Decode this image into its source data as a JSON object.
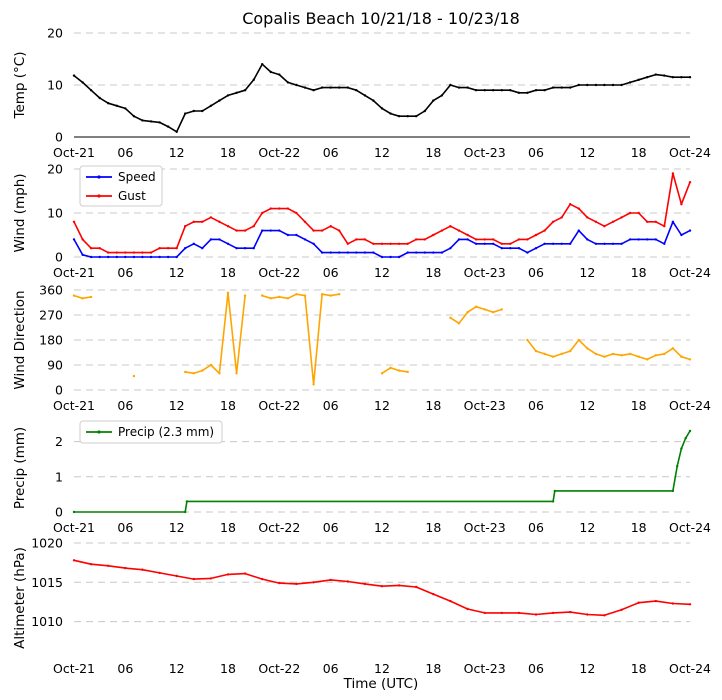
{
  "title": "Copalis Beach 10/21/18 - 10/23/18",
  "xlabel": "Time (UTC)",
  "x_ticks": [
    "Oct-21",
    "06",
    "12",
    "18",
    "Oct-22",
    "06",
    "12",
    "18",
    "Oct-23",
    "06",
    "12",
    "18",
    "Oct-24"
  ],
  "colors": {
    "temp": "#000000",
    "speed": "#0000ff",
    "gust": "#ff0000",
    "direction": "#ffa500",
    "precip": "#008000",
    "altimeter": "#ff0000"
  },
  "chart_data": [
    {
      "type": "line",
      "id": "temp",
      "ylabel": "Temp ($^\\circ$C)",
      "ylabel_display": "Temp (°C)",
      "ylim": [
        0,
        20
      ],
      "yticks": [
        "0",
        "10",
        "20"
      ],
      "xlim_hours": [
        0,
        72
      ],
      "series": [
        {
          "name": "Temp",
          "x": [
            0,
            1,
            2,
            3,
            4,
            5,
            6,
            7,
            8,
            9,
            10,
            11,
            12,
            13,
            14,
            15,
            16,
            17,
            18,
            19,
            20,
            21,
            22,
            23,
            24,
            25,
            26,
            27,
            28,
            29,
            30,
            31,
            32,
            33,
            34,
            35,
            36,
            37,
            38,
            39,
            40,
            41,
            42,
            43,
            44,
            45,
            46,
            47,
            48,
            49,
            50,
            51,
            52,
            53,
            54,
            55,
            56,
            57,
            58,
            59,
            60,
            61,
            62,
            63,
            64,
            65,
            66,
            67,
            68,
            69,
            70,
            71,
            72
          ],
          "y": [
            11.8,
            10.5,
            9,
            7.5,
            6.5,
            6,
            5.5,
            4,
            3.2,
            3,
            2.8,
            2,
            1,
            4.5,
            5,
            5,
            6,
            7,
            8,
            8.5,
            9,
            11,
            14,
            12.5,
            12,
            10.5,
            10,
            9.5,
            9,
            9.5,
            9.5,
            9.5,
            9.5,
            9,
            8,
            7,
            5.5,
            4.5,
            4,
            4,
            4,
            5,
            7,
            8,
            10,
            9.5,
            9.5,
            9,
            9,
            9,
            9,
            9,
            8.5,
            8.5,
            9,
            9,
            9.5,
            9.5,
            9.5,
            10,
            10,
            10,
            10,
            10,
            10,
            10.5,
            11,
            11.5,
            12,
            11.8,
            11.5,
            11.5,
            11.5
          ]
        }
      ]
    },
    {
      "type": "line",
      "id": "wind",
      "ylabel": "Wind (mph)",
      "ylim": [
        0,
        20
      ],
      "yticks": [
        "0",
        "10",
        "20"
      ],
      "legend": [
        "Speed",
        "Gust"
      ],
      "series": [
        {
          "name": "Speed",
          "x": [
            0,
            1,
            2,
            3,
            4,
            5,
            6,
            7,
            8,
            9,
            10,
            11,
            12,
            13,
            14,
            15,
            16,
            17,
            18,
            19,
            20,
            21,
            22,
            23,
            24,
            25,
            26,
            27,
            28,
            29,
            30,
            31,
            32,
            33,
            34,
            35,
            36,
            37,
            38,
            39,
            40,
            41,
            42,
            43,
            44,
            45,
            46,
            47,
            48,
            49,
            50,
            51,
            52,
            53,
            54,
            55,
            56,
            57,
            58,
            59,
            60,
            61,
            62,
            63,
            64,
            65,
            66,
            67,
            68,
            69,
            70,
            71,
            72
          ],
          "y": [
            4,
            0.5,
            0,
            0,
            0,
            0,
            0,
            0,
            0,
            0,
            0,
            0,
            0,
            2,
            3,
            2,
            4,
            4,
            3,
            2,
            2,
            2,
            6,
            6,
            6,
            5,
            5,
            4,
            3,
            1,
            1,
            1,
            1,
            1,
            1,
            1,
            0,
            0,
            0,
            1,
            1,
            1,
            1,
            1,
            2,
            4,
            4,
            3,
            3,
            3,
            2,
            2,
            2,
            1,
            2,
            3,
            3,
            3,
            3,
            6,
            4,
            3,
            3,
            3,
            3,
            4,
            4,
            4,
            4,
            3,
            8,
            5,
            6
          ]
        },
        {
          "name": "Gust",
          "x": [
            0,
            1,
            2,
            3,
            4,
            5,
            6,
            7,
            8,
            9,
            10,
            11,
            12,
            13,
            14,
            15,
            16,
            17,
            18,
            19,
            20,
            21,
            22,
            23,
            24,
            25,
            26,
            27,
            28,
            29,
            30,
            31,
            32,
            33,
            34,
            35,
            36,
            37,
            38,
            39,
            40,
            41,
            42,
            43,
            44,
            45,
            46,
            47,
            48,
            49,
            50,
            51,
            52,
            53,
            54,
            55,
            56,
            57,
            58,
            59,
            60,
            61,
            62,
            63,
            64,
            65,
            66,
            67,
            68,
            69,
            70,
            71,
            72
          ],
          "y": [
            8,
            4,
            2,
            2,
            1,
            1,
            1,
            1,
            1,
            1,
            2,
            2,
            2,
            7,
            8,
            8,
            9,
            8,
            7,
            6,
            6,
            7,
            10,
            11,
            11,
            11,
            10,
            8,
            6,
            6,
            7,
            6,
            3,
            4,
            4,
            3,
            3,
            3,
            3,
            3,
            4,
            4,
            5,
            6,
            7,
            6,
            5,
            4,
            4,
            4,
            3,
            3,
            4,
            4,
            5,
            6,
            8,
            9,
            12,
            11,
            9,
            8,
            7,
            8,
            9,
            10,
            10,
            8,
            8,
            7,
            19,
            12,
            17
          ]
        }
      ]
    },
    {
      "type": "line",
      "id": "direction",
      "ylabel": "Wind Direction",
      "ylim": [
        0,
        360
      ],
      "yticks": [
        "0",
        "90",
        "180",
        "270",
        "360"
      ],
      "series": [
        {
          "name": "Direction",
          "x": [
            0,
            1,
            2,
            3,
            4,
            5,
            6,
            7,
            8,
            9,
            10,
            11,
            12,
            13,
            14,
            15,
            16,
            17,
            18,
            19,
            20,
            21,
            22,
            23,
            24,
            25,
            26,
            27,
            28,
            29,
            30,
            31,
            32,
            33,
            34,
            35,
            36,
            37,
            38,
            39,
            40,
            41,
            42,
            43,
            44,
            45,
            46,
            47,
            48,
            49,
            50,
            51,
            52,
            53,
            54,
            55,
            56,
            57,
            58,
            59,
            60,
            61,
            62,
            63,
            64,
            65,
            66,
            67,
            68,
            69,
            70,
            71,
            72
          ],
          "y": [
            340,
            330,
            335,
            null,
            null,
            null,
            null,
            50,
            null,
            null,
            null,
            null,
            null,
            65,
            60,
            70,
            90,
            60,
            350,
            60,
            340,
            null,
            340,
            330,
            335,
            330,
            345,
            340,
            20,
            345,
            340,
            345,
            null,
            null,
            null,
            null,
            60,
            80,
            70,
            65,
            null,
            null,
            null,
            null,
            260,
            240,
            280,
            300,
            290,
            280,
            290,
            null,
            null,
            180,
            140,
            130,
            120,
            130,
            140,
            180,
            150,
            130,
            120,
            130,
            125,
            130,
            120,
            110,
            125,
            130,
            150,
            120,
            110
          ]
        }
      ]
    },
    {
      "type": "line",
      "id": "precip",
      "ylabel": "Precip (mm)",
      "ylim": [
        0,
        2.5
      ],
      "yticks": [
        "0",
        "1",
        "2"
      ],
      "legend": [
        "Precip (2.3 mm)"
      ],
      "series": [
        {
          "name": "Precip (2.3 mm)",
          "x": [
            0,
            13,
            13.2,
            56,
            56.2,
            70,
            70.5,
            71,
            71.5,
            72
          ],
          "y": [
            0,
            0,
            0.3,
            0.3,
            0.6,
            0.6,
            1.3,
            1.8,
            2.1,
            2.3
          ]
        }
      ]
    },
    {
      "type": "line",
      "id": "altimeter",
      "ylabel": "Altimeter (hPa)",
      "ylim": [
        1006,
        1020
      ],
      "yticks": [
        "1010",
        "1015",
        "1020"
      ],
      "series": [
        {
          "name": "Altimeter",
          "x": [
            0,
            2,
            4,
            6,
            8,
            10,
            12,
            14,
            16,
            18,
            20,
            22,
            24,
            26,
            28,
            30,
            32,
            34,
            36,
            38,
            40,
            42,
            44,
            46,
            48,
            50,
            52,
            54,
            56,
            58,
            60,
            62,
            64,
            66,
            68,
            70,
            72
          ],
          "y": [
            1017.8,
            1017.3,
            1017.1,
            1016.8,
            1016.6,
            1016.2,
            1015.8,
            1015.4,
            1015.5,
            1016,
            1016.1,
            1015.4,
            1014.9,
            1014.8,
            1015,
            1015.3,
            1015.1,
            1014.8,
            1014.5,
            1014.6,
            1014.4,
            1013.5,
            1012.6,
            1011.6,
            1011.1,
            1011.1,
            1011.1,
            1010.9,
            1011.1,
            1011.2,
            1010.9,
            1010.8,
            1011.5,
            1012.4,
            1012.6,
            1012.3,
            1012.2
          ]
        }
      ]
    }
  ]
}
